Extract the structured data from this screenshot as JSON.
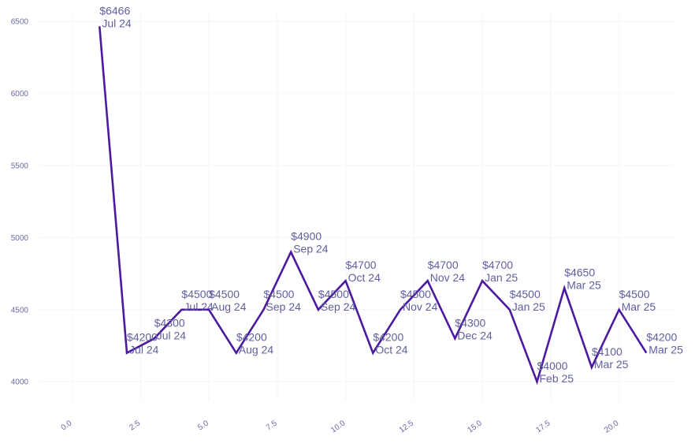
{
  "chart_data": {
    "type": "line",
    "title": "",
    "xlabel": "",
    "ylabel": "",
    "xlim": [
      -1.2,
      22
    ],
    "ylim": [
      3870,
      6550
    ],
    "grid": true,
    "x_ticks": [
      0.0,
      2.5,
      5.0,
      7.5,
      10.0,
      12.5,
      15.0,
      17.5,
      20.0
    ],
    "x_tick_labels": [
      "0.0",
      "2.5",
      "5.0",
      "7.5",
      "10.0",
      "12.5",
      "15.0",
      "17.5",
      "20.0"
    ],
    "y_ticks": [
      4000,
      4500,
      5000,
      5500,
      6000,
      6500
    ],
    "y_tick_labels": [
      "4000",
      "4500",
      "5000",
      "5500",
      "6000",
      "6500"
    ],
    "series": [
      {
        "points": [
          {
            "x": 1,
            "y": 6466,
            "price": "$6466",
            "date": "Jul 24"
          },
          {
            "x": 2,
            "y": 4200,
            "price": "$4200",
            "date": "Jul 24"
          },
          {
            "x": 3,
            "y": 4300,
            "price": "$4300",
            "date": "Jul 24"
          },
          {
            "x": 4,
            "y": 4500,
            "price": "$4500",
            "date": "Jul 24"
          },
          {
            "x": 5,
            "y": 4500,
            "price": "$4500",
            "date": "Aug 24"
          },
          {
            "x": 6,
            "y": 4200,
            "price": "$4200",
            "date": "Aug 24"
          },
          {
            "x": 7,
            "y": 4500,
            "price": "$4500",
            "date": "Sep 24"
          },
          {
            "x": 8,
            "y": 4900,
            "price": "$4900",
            "date": "Sep 24"
          },
          {
            "x": 9,
            "y": 4500,
            "price": "$4500",
            "date": "Sep 24"
          },
          {
            "x": 10,
            "y": 4700,
            "price": "$4700",
            "date": "Oct 24"
          },
          {
            "x": 11,
            "y": 4200,
            "price": "$4200",
            "date": "Oct 24"
          },
          {
            "x": 12,
            "y": 4500,
            "price": "$4500",
            "date": "Nov 24"
          },
          {
            "x": 13,
            "y": 4700,
            "price": "$4700",
            "date": "Nov 24"
          },
          {
            "x": 14,
            "y": 4300,
            "price": "$4300",
            "date": "Dec 24"
          },
          {
            "x": 15,
            "y": 4700,
            "price": "$4700",
            "date": "Jan 25"
          },
          {
            "x": 16,
            "y": 4500,
            "price": "$4500",
            "date": "Jan 25"
          },
          {
            "x": 17,
            "y": 4000,
            "price": "$4000",
            "date": "Feb 25"
          },
          {
            "x": 18,
            "y": 4650,
            "price": "$4650",
            "date": "Mar 25"
          },
          {
            "x": 19,
            "y": 4100,
            "price": "$4100",
            "date": "Mar 25"
          },
          {
            "x": 20,
            "y": 4500,
            "price": "$4500",
            "date": "Mar 25"
          },
          {
            "x": 21,
            "y": 4200,
            "price": "$4200",
            "date": "Mar 25"
          }
        ]
      }
    ]
  },
  "colors": {
    "line": "#4c1aa0",
    "label": "#5f5fa0",
    "tick": "#6a6aa8",
    "grid": "#f6f6f8"
  }
}
